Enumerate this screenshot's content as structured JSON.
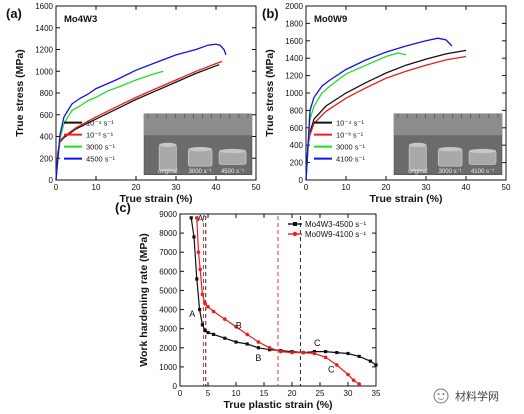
{
  "colors": {
    "black": "#111111",
    "red": "#ee1c1c",
    "green": "#22dd22",
    "blue": "#1111ee"
  },
  "panels": {
    "a": "(a)",
    "b": "(b)",
    "c": "(c)"
  },
  "watermark": "材料学网",
  "chart_data": [
    {
      "id": "a",
      "type": "line",
      "alloy": "Mo4W3",
      "xlabel": "True strain (%)",
      "ylabel": "True stress (MPa)",
      "xlim": [
        0,
        50
      ],
      "ylim": [
        0,
        1600
      ],
      "xticks": [
        0,
        10,
        20,
        30,
        40,
        50
      ],
      "yticks": [
        0,
        200,
        400,
        600,
        800,
        1000,
        1200,
        1400,
        1600
      ],
      "grid": false,
      "legend_position": "bottom-left",
      "series": [
        {
          "name": "10⁻⁴ s⁻¹",
          "color": "#111111",
          "legend_sup": "-4",
          "x": [
            0,
            0.5,
            1,
            2,
            5,
            10,
            15,
            20,
            25,
            30,
            35,
            40,
            40.8
          ],
          "y": [
            0,
            250,
            350,
            390,
            470,
            560,
            650,
            740,
            820,
            900,
            980,
            1050,
            1060
          ]
        },
        {
          "name": "10⁻³ s⁻¹",
          "color": "#ee1c1c",
          "legend_sup": "-3",
          "x": [
            0,
            0.5,
            1,
            2,
            5,
            10,
            15,
            20,
            25,
            30,
            35,
            40,
            41.5
          ],
          "y": [
            0,
            260,
            360,
            400,
            480,
            580,
            670,
            760,
            840,
            920,
            1000,
            1070,
            1090
          ]
        },
        {
          "name": "3000 s⁻¹",
          "color": "#22dd22",
          "legend_sup": "",
          "x": [
            0,
            1,
            2,
            4,
            6,
            8,
            10,
            13,
            16,
            20,
            24,
            26.8
          ],
          "y": [
            0,
            380,
            520,
            640,
            680,
            730,
            760,
            820,
            860,
            920,
            970,
            1000
          ]
        },
        {
          "name": "4500 s⁻¹",
          "color": "#1111ee",
          "legend_sup": "",
          "x": [
            0,
            1,
            2,
            4,
            6,
            8,
            10,
            15,
            20,
            25,
            30,
            35,
            38,
            40,
            41,
            42,
            42.5
          ],
          "y": [
            0,
            420,
            580,
            700,
            750,
            790,
            840,
            920,
            1010,
            1080,
            1150,
            1200,
            1240,
            1250,
            1240,
            1200,
            1150
          ]
        }
      ],
      "inset_labels": [
        "original",
        "3000 s⁻¹",
        "4500 s⁻¹"
      ]
    },
    {
      "id": "b",
      "type": "line",
      "alloy": "Mo0W9",
      "xlabel": "True strain (%)",
      "ylabel": "True stress (MPa)",
      "xlim": [
        0,
        50
      ],
      "ylim": [
        0,
        2000
      ],
      "xticks": [
        0,
        10,
        20,
        30,
        40,
        50
      ],
      "yticks": [
        0,
        200,
        400,
        600,
        800,
        1000,
        1200,
        1400,
        1600,
        1800,
        2000
      ],
      "grid": false,
      "legend_position": "bottom-left",
      "series": [
        {
          "name": "10⁻⁴ s⁻¹",
          "color": "#111111",
          "legend_sup": "-4",
          "x": [
            0,
            0.5,
            1,
            2,
            5,
            10,
            15,
            20,
            25,
            30,
            35,
            40
          ],
          "y": [
            0,
            400,
            550,
            700,
            850,
            1000,
            1120,
            1230,
            1320,
            1390,
            1450,
            1490
          ]
        },
        {
          "name": "10⁻³ s⁻¹",
          "color": "#ee1c1c",
          "legend_sup": "-3",
          "x": [
            0,
            0.5,
            1,
            2,
            5,
            10,
            15,
            20,
            25,
            30,
            35,
            40
          ],
          "y": [
            0,
            380,
            520,
            650,
            790,
            940,
            1060,
            1170,
            1250,
            1320,
            1380,
            1420
          ]
        },
        {
          "name": "3000 s⁻¹",
          "color": "#22dd22",
          "legend_sup": "",
          "x": [
            0,
            1,
            2,
            4,
            6,
            10,
            15,
            20,
            23,
            25
          ],
          "y": [
            0,
            700,
            850,
            1000,
            1080,
            1220,
            1320,
            1420,
            1460,
            1440
          ]
        },
        {
          "name": "4100 s⁻¹",
          "color": "#1111ee",
          "legend_sup": "",
          "x": [
            0,
            1,
            2,
            4,
            6,
            10,
            15,
            20,
            25,
            30,
            33,
            35,
            36.5
          ],
          "y": [
            0,
            800,
            950,
            1080,
            1150,
            1270,
            1380,
            1470,
            1540,
            1600,
            1630,
            1610,
            1540
          ]
        }
      ],
      "inset_labels": [
        "original",
        "3000 s⁻¹",
        "4100 s⁻¹"
      ]
    },
    {
      "id": "c",
      "type": "line",
      "xlabel": "True plastic strain (%)",
      "ylabel": "Work hardening rate (MPa)",
      "xlim": [
        0,
        35
      ],
      "ylim": [
        0,
        9000
      ],
      "xticks": [
        0,
        5,
        10,
        15,
        20,
        25,
        30,
        35
      ],
      "yticks": [
        0,
        1000,
        2000,
        3000,
        4000,
        5000,
        6000,
        7000,
        8000,
        9000
      ],
      "grid": false,
      "legend_position": "top-right",
      "series": [
        {
          "name": "Mo4W3-4500 s⁻¹",
          "color": "#111111",
          "marker": "square",
          "x": [
            2,
            2.5,
            3,
            3.5,
            4,
            4.5,
            5,
            6,
            8,
            10,
            12,
            14,
            16,
            18,
            20,
            22,
            24,
            26,
            28,
            30,
            32,
            34,
            35
          ],
          "y": [
            8800,
            7800,
            5600,
            4000,
            3200,
            2900,
            2800,
            2700,
            2500,
            2300,
            2200,
            2000,
            1900,
            1850,
            1800,
            1750,
            1800,
            1800,
            1750,
            1700,
            1550,
            1300,
            1100
          ]
        },
        {
          "name": "Mo0W9-4100 s⁻¹",
          "color": "#ee1c1c",
          "marker": "circle",
          "x": [
            3,
            3.3,
            3.6,
            4,
            4.5,
            5,
            6,
            8,
            10,
            12,
            14,
            16,
            18,
            20,
            22,
            24,
            26,
            28,
            30,
            31,
            32
          ],
          "y": [
            8800,
            7000,
            6100,
            4800,
            4300,
            4150,
            3900,
            3500,
            3100,
            2700,
            2300,
            2000,
            1800,
            1750,
            1750,
            1700,
            1500,
            1100,
            600,
            300,
            100
          ]
        }
      ],
      "stage_labels": [
        {
          "text": "A",
          "x": 2.2,
          "y": 3600,
          "color": "#111111"
        },
        {
          "text": "A'",
          "x": 3.8,
          "y": 8600,
          "color": "#ee1c1c"
        },
        {
          "text": "B",
          "x": 10.5,
          "y": 3000,
          "color": "#ee1c1c"
        },
        {
          "text": "B",
          "x": 14,
          "y": 1300,
          "color": "#111111"
        },
        {
          "text": "C",
          "x": 24.5,
          "y": 2100,
          "color": "#ee1c1c"
        },
        {
          "text": "C",
          "x": 27,
          "y": 700,
          "color": "#111111"
        }
      ],
      "dividers": [
        {
          "x": 4.6,
          "color": "#111111"
        },
        {
          "x": 21.5,
          "color": "#111111"
        },
        {
          "x": 4.2,
          "color": "#ee1c1c"
        },
        {
          "x": 17.5,
          "color": "#ee1c1c"
        }
      ]
    }
  ]
}
